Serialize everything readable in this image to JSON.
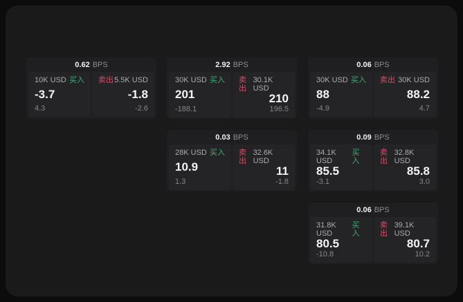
{
  "labels": {
    "bps_unit": "BPS",
    "buy": "买入",
    "sell": "卖出"
  },
  "colors": {
    "buy_green": "#3fae73",
    "sell_red": "#d25067",
    "panel_bg": "#1a1a1b",
    "card_bg": "#1f1f21",
    "subpanel_bg": "#242427",
    "page_bg": "#0c0c0c",
    "text_primary": "#f5f5f5",
    "text_secondary": "#acacae",
    "text_muted": "#87878a"
  },
  "cards": [
    {
      "bps": "0.62",
      "buy": {
        "amount": "10K USD",
        "price": "-3.7",
        "delta": "4.3"
      },
      "sell": {
        "amount": "5.5K USD",
        "price": "-1.8",
        "delta": "-2.6"
      }
    },
    {
      "bps": "2.92",
      "buy": {
        "amount": "30K USD",
        "price": "201",
        "delta": "-188.1"
      },
      "sell": {
        "amount": "30.1K USD",
        "price": "210",
        "delta": "196.5"
      }
    },
    {
      "bps": "0.06",
      "buy": {
        "amount": "30K USD",
        "price": "88",
        "delta": "-4.9"
      },
      "sell": {
        "amount": "30K USD",
        "price": "88.2",
        "delta": "4.7"
      }
    },
    {
      "bps": "0.03",
      "buy": {
        "amount": "28K USD",
        "price": "10.9",
        "delta": "1.3"
      },
      "sell": {
        "amount": "32.6K USD",
        "price": "11",
        "delta": "-1.8"
      }
    },
    {
      "bps": "0.09",
      "buy": {
        "amount": "34.1K USD",
        "price": "85.5",
        "delta": "-3.1"
      },
      "sell": {
        "amount": "32.8K USD",
        "price": "85.8",
        "delta": "3.0"
      }
    },
    {
      "bps": "0.06",
      "buy": {
        "amount": "31.8K USD",
        "price": "80.5",
        "delta": "-10.8"
      },
      "sell": {
        "amount": "39.1K USD",
        "price": "80.7",
        "delta": "10.2"
      }
    }
  ]
}
